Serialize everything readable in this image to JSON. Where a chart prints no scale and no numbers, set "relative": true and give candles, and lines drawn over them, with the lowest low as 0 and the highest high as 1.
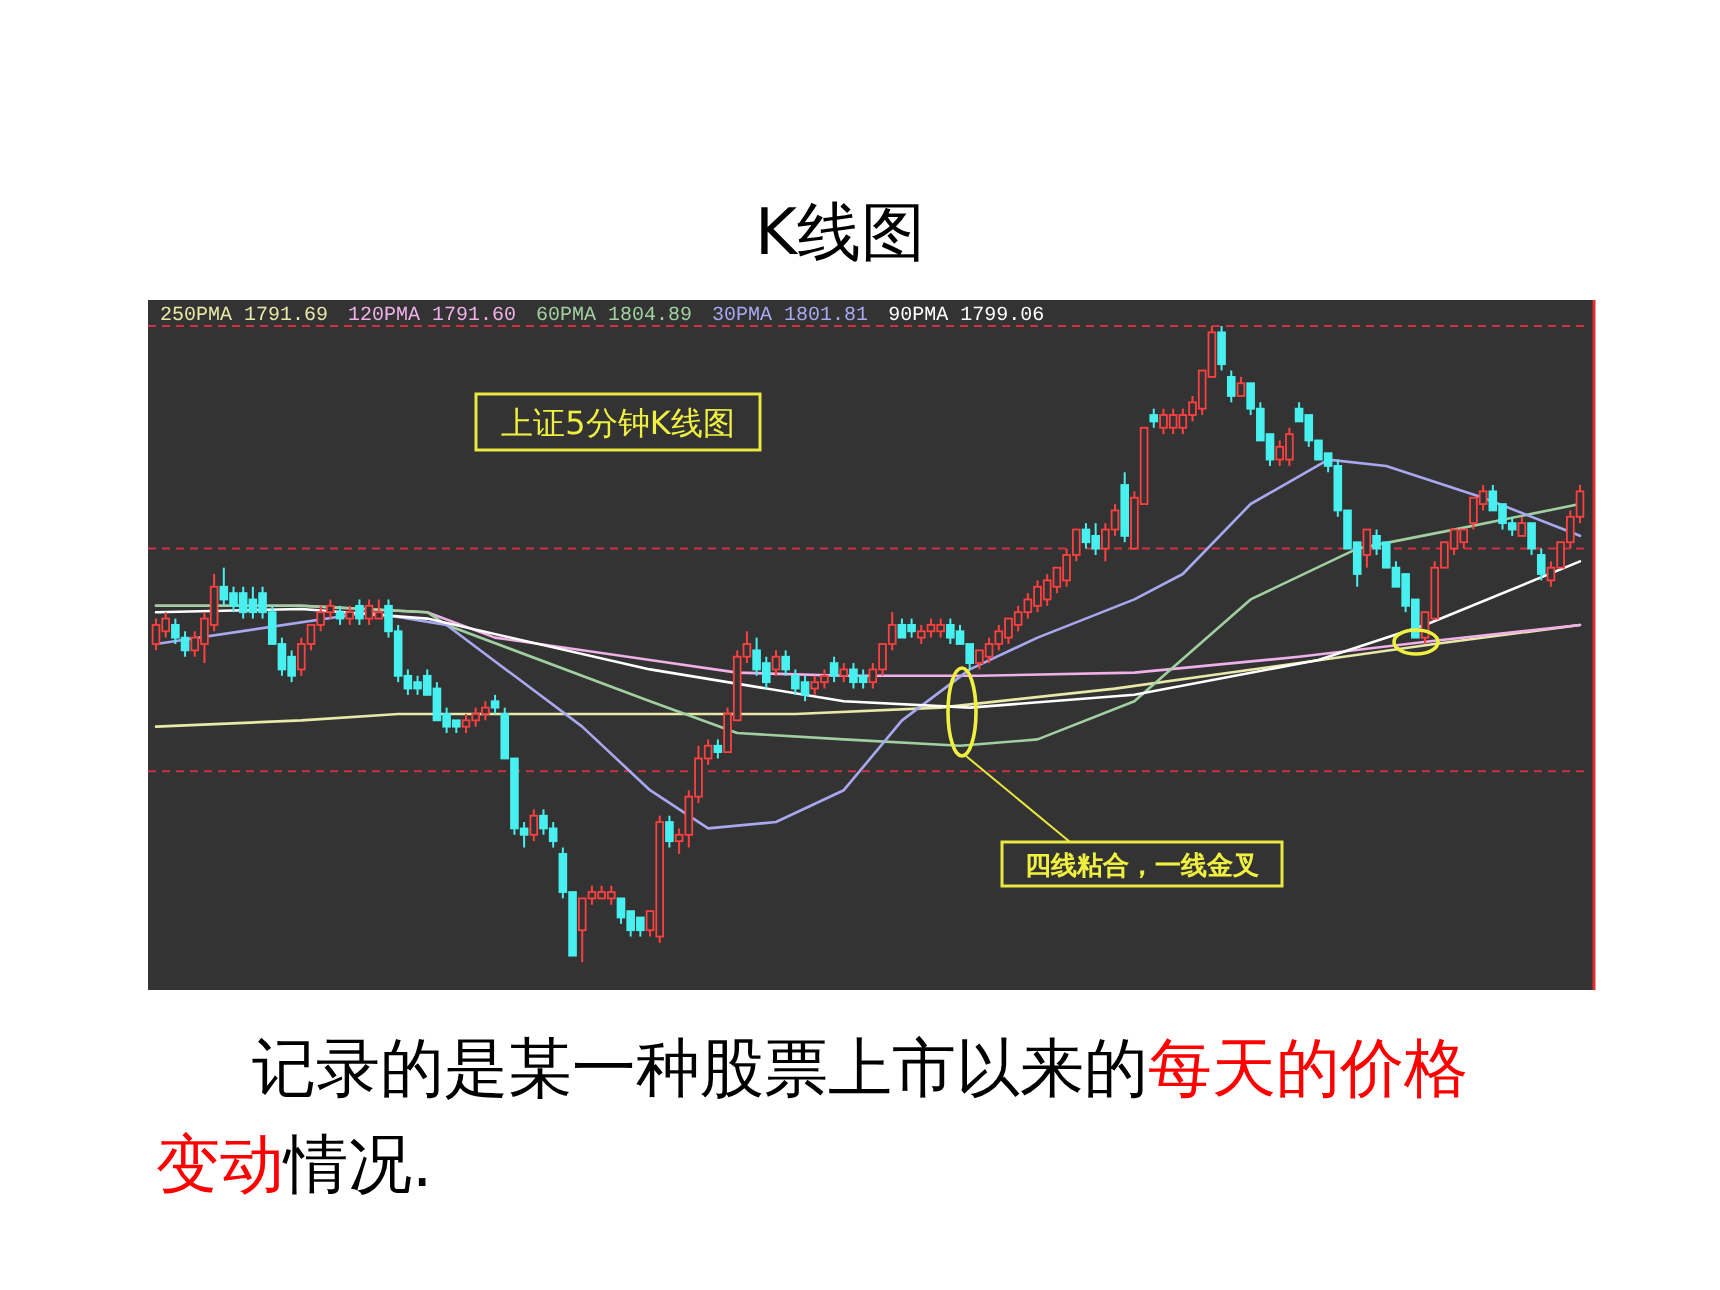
{
  "chart_data": {
    "type": "candlestick",
    "title": "K线图",
    "relative": true,
    "legend": "top left",
    "colors": [
      "#ff4040",
      "#ff4040",
      "#48f0f0",
      "#48f0f0",
      "#ff4040",
      "#ff4040",
      "#ff4040",
      "#48f0f0",
      "#48f0f0",
      "#48f0f0",
      "#48f0f0",
      "#48f0f0",
      "#48f0f0",
      "#48f0f0",
      "#48f0f0",
      "#ff4040",
      "#ff4040",
      "#ff4040",
      "#ff4040",
      "#48f0f0",
      "#ff4040",
      "#48f0f0",
      "#ff4040",
      "#ff4040",
      "#48f0f0",
      "#48f0f0",
      "#48f0f0",
      "#48f0f0",
      "#48f0f0",
      "#48f0f0",
      "#48f0f0",
      "#48f0f0",
      "#ff4040",
      "#ff4040",
      "#ff4040",
      "#48f0f0",
      "#48f0f0",
      "#48f0f0",
      "#48f0f0",
      "#ff4040",
      "#48f0f0",
      "#48f0f0",
      "#48f0f0",
      "#48f0f0",
      "#ff4040",
      "#ff4040",
      "#ff4040",
      "#ff4040",
      "#48f0f0",
      "#48f0f0",
      "#48f0f0",
      "#ff4040",
      "#ff4040",
      "#48f0f0",
      "#ff4040",
      "#ff4040",
      "#ff4040",
      "#ff4040",
      "#48f0f0",
      "#ff4040",
      "#ff4040",
      "#ff4040",
      "#48f0f0",
      "#48f0f0",
      "#ff4040",
      "#48f0f0",
      "#48f0f0",
      "#48f0f0",
      "#ff4040",
      "#ff4040",
      "#48f0f0",
      "#ff4040",
      "#48f0f0",
      "#48f0f0",
      "#ff4040",
      "#ff4040",
      "#ff4040",
      "#48f0f0",
      "#48f0f0",
      "#ff4040",
      "#ff4040",
      "#ff4040",
      "#48f0f0",
      "#48f0f0",
      "#48f0f0",
      "#ff4040",
      "#ff4040",
      "#ff4040",
      "#ff4040",
      "#ff4040",
      "#ff4040",
      "#ff4040",
      "#ff4040",
      "#ff4040",
      "#ff4040",
      "#ff4040",
      "#48f0f0",
      "#48f0f0",
      "#ff4040",
      "#ff4040",
      "#48f0f0",
      "#ff4040",
      "#ff4040",
      "#48f0f0",
      "#ff4040",
      "#ff4040",
      "#ff4040",
      "#ff4040",
      "#ff4040",
      "#ff4040",
      "#48f0f0",
      "#48f0f0",
      "#ff4040",
      "#48f0f0",
      "#48f0f0",
      "#48f0f0",
      "#ff4040",
      "#ff4040",
      "#48f0f0",
      "#48f0f0",
      "#48f0f0",
      "#48f0f0",
      "#48f0f0",
      "#48f0f0",
      "#48f0f0",
      "#ff4040",
      "#48f0f0",
      "#48f0f0",
      "#48f0f0",
      "#48f0f0",
      "#48f0f0",
      "#ff4040",
      "#ff4040",
      "#ff4040",
      "#ff4040",
      "#ff4040",
      "#ff4040",
      "#ff4040",
      "#48f0f0",
      "#48f0f0",
      "#48f0f0",
      "#ff4040",
      "#48f0f0",
      "#48f0f0",
      "#ff4040",
      "#ff4040",
      "#ff4040",
      "#ff4040"
    ],
    "categories": [
      null,
      null,
      null,
      null,
      null,
      null,
      null,
      null,
      null,
      null,
      null,
      null,
      null,
      null,
      null,
      null,
      null,
      null,
      null,
      null,
      null,
      null,
      null,
      null,
      null,
      null,
      null,
      null,
      null,
      null,
      null,
      null,
      null,
      null,
      null,
      null,
      null,
      null,
      null,
      null,
      null,
      null,
      null,
      null,
      null,
      null,
      null,
      null,
      null,
      null,
      null,
      null,
      null,
      null,
      null,
      null,
      null,
      null,
      null,
      null,
      null,
      null,
      null,
      null,
      null,
      null,
      null,
      null,
      null,
      null,
      null,
      null,
      null,
      null,
      null,
      null,
      null,
      null,
      null,
      null,
      null,
      null,
      null,
      null,
      null,
      null,
      null,
      null,
      null,
      null,
      null,
      null,
      null,
      null,
      null,
      null,
      null,
      null,
      null,
      null,
      null,
      null,
      null,
      null,
      null,
      null,
      null,
      null,
      null,
      null,
      null,
      null,
      null,
      null,
      null,
      null,
      null,
      null,
      null,
      null,
      null,
      null,
      null,
      null,
      null,
      null,
      null,
      null,
      null,
      null,
      null,
      null,
      null,
      null,
      null,
      null,
      null,
      null,
      null,
      null,
      null,
      null,
      null,
      null,
      null,
      null,
      null,
      null
    ],
    "ohlc": [
      [
        0.5,
        0.54,
        0.49,
        0.53
      ],
      [
        0.52,
        0.55,
        0.51,
        0.54
      ],
      [
        0.53,
        0.54,
        0.5,
        0.51
      ],
      [
        0.51,
        0.52,
        0.48,
        0.49
      ],
      [
        0.49,
        0.52,
        0.48,
        0.51
      ],
      [
        0.5,
        0.55,
        0.47,
        0.54
      ],
      [
        0.53,
        0.61,
        0.52,
        0.59
      ],
      [
        0.59,
        0.62,
        0.56,
        0.57
      ],
      [
        0.58,
        0.59,
        0.55,
        0.56
      ],
      [
        0.58,
        0.59,
        0.54,
        0.55
      ],
      [
        0.57,
        0.59,
        0.54,
        0.55
      ],
      [
        0.58,
        0.59,
        0.54,
        0.55
      ],
      [
        0.55,
        0.56,
        0.5,
        0.5
      ],
      [
        0.5,
        0.51,
        0.45,
        0.46
      ],
      [
        0.48,
        0.49,
        0.44,
        0.45
      ],
      [
        0.46,
        0.51,
        0.45,
        0.5
      ],
      [
        0.5,
        0.53,
        0.49,
        0.53
      ],
      [
        0.53,
        0.56,
        0.52,
        0.55
      ],
      [
        0.55,
        0.57,
        0.54,
        0.56
      ],
      [
        0.55,
        0.56,
        0.53,
        0.54
      ],
      [
        0.54,
        0.56,
        0.53,
        0.55
      ],
      [
        0.56,
        0.57,
        0.53,
        0.54
      ],
      [
        0.54,
        0.57,
        0.53,
        0.56
      ],
      [
        0.54,
        0.57,
        0.54,
        0.55
      ],
      [
        0.56,
        0.57,
        0.51,
        0.52
      ],
      [
        0.52,
        0.53,
        0.44,
        0.45
      ],
      [
        0.45,
        0.46,
        0.42,
        0.43
      ],
      [
        0.44,
        0.45,
        0.42,
        0.43
      ],
      [
        0.45,
        0.46,
        0.42,
        0.42
      ],
      [
        0.43,
        0.44,
        0.38,
        0.38
      ],
      [
        0.39,
        0.4,
        0.36,
        0.37
      ],
      [
        0.38,
        0.38,
        0.36,
        0.37
      ],
      [
        0.37,
        0.39,
        0.36,
        0.38
      ],
      [
        0.38,
        0.4,
        0.37,
        0.39
      ],
      [
        0.39,
        0.41,
        0.38,
        0.4
      ],
      [
        0.41,
        0.42,
        0.39,
        0.4
      ],
      [
        0.39,
        0.4,
        0.32,
        0.32
      ],
      [
        0.32,
        0.32,
        0.2,
        0.21
      ],
      [
        0.21,
        0.22,
        0.18,
        0.2
      ],
      [
        0.2,
        0.24,
        0.19,
        0.23
      ],
      [
        0.23,
        0.24,
        0.2,
        0.21
      ],
      [
        0.21,
        0.22,
        0.18,
        0.19
      ],
      [
        0.17,
        0.18,
        0.1,
        0.11
      ],
      [
        0.11,
        0.11,
        0.01,
        0.01
      ],
      [
        0.05,
        0.1,
        0.0,
        0.1
      ],
      [
        0.1,
        0.12,
        0.09,
        0.11
      ],
      [
        0.1,
        0.12,
        0.1,
        0.11
      ],
      [
        0.1,
        0.12,
        0.09,
        0.11
      ],
      [
        0.1,
        0.1,
        0.06,
        0.07
      ],
      [
        0.08,
        0.08,
        0.04,
        0.05
      ],
      [
        0.07,
        0.07,
        0.04,
        0.05
      ],
      [
        0.05,
        0.08,
        0.04,
        0.08
      ],
      [
        0.04,
        0.23,
        0.03,
        0.22
      ],
      [
        0.22,
        0.23,
        0.18,
        0.19
      ],
      [
        0.19,
        0.21,
        0.17,
        0.2
      ],
      [
        0.2,
        0.27,
        0.18,
        0.26
      ],
      [
        0.26,
        0.34,
        0.25,
        0.32
      ],
      [
        0.32,
        0.35,
        0.31,
        0.34
      ],
      [
        0.34,
        0.35,
        0.32,
        0.33
      ],
      [
        0.33,
        0.4,
        0.33,
        0.39
      ],
      [
        0.38,
        0.49,
        0.38,
        0.48
      ],
      [
        0.48,
        0.52,
        0.47,
        0.5
      ],
      [
        0.49,
        0.51,
        0.45,
        0.46
      ],
      [
        0.47,
        0.48,
        0.43,
        0.44
      ],
      [
        0.46,
        0.49,
        0.45,
        0.48
      ],
      [
        0.48,
        0.49,
        0.45,
        0.46
      ],
      [
        0.45,
        0.46,
        0.42,
        0.43
      ],
      [
        0.44,
        0.45,
        0.41,
        0.42
      ],
      [
        0.43,
        0.45,
        0.42,
        0.44
      ],
      [
        0.44,
        0.46,
        0.43,
        0.45
      ],
      [
        0.47,
        0.48,
        0.44,
        0.45
      ],
      [
        0.45,
        0.47,
        0.44,
        0.46
      ],
      [
        0.46,
        0.47,
        0.43,
        0.44
      ],
      [
        0.45,
        0.46,
        0.43,
        0.44
      ],
      [
        0.44,
        0.47,
        0.43,
        0.46
      ],
      [
        0.46,
        0.5,
        0.45,
        0.5
      ],
      [
        0.5,
        0.55,
        0.49,
        0.53
      ],
      [
        0.53,
        0.54,
        0.51,
        0.51
      ],
      [
        0.53,
        0.54,
        0.51,
        0.52
      ],
      [
        0.51,
        0.53,
        0.5,
        0.52
      ],
      [
        0.52,
        0.54,
        0.51,
        0.53
      ],
      [
        0.52,
        0.54,
        0.51,
        0.53
      ],
      [
        0.53,
        0.54,
        0.5,
        0.51
      ],
      [
        0.52,
        0.53,
        0.5,
        0.5
      ],
      [
        0.5,
        0.5,
        0.46,
        0.47
      ],
      [
        0.47,
        0.49,
        0.46,
        0.49
      ],
      [
        0.48,
        0.51,
        0.47,
        0.5
      ],
      [
        0.5,
        0.53,
        0.49,
        0.52
      ],
      [
        0.51,
        0.54,
        0.5,
        0.54
      ],
      [
        0.53,
        0.56,
        0.52,
        0.55
      ],
      [
        0.55,
        0.58,
        0.54,
        0.57
      ],
      [
        0.56,
        0.6,
        0.55,
        0.59
      ],
      [
        0.57,
        0.61,
        0.56,
        0.6
      ],
      [
        0.59,
        0.62,
        0.58,
        0.62
      ],
      [
        0.6,
        0.65,
        0.59,
        0.64
      ],
      [
        0.64,
        0.68,
        0.63,
        0.68
      ],
      [
        0.68,
        0.69,
        0.65,
        0.66
      ],
      [
        0.67,
        0.69,
        0.64,
        0.65
      ],
      [
        0.65,
        0.69,
        0.63,
        0.68
      ],
      [
        0.68,
        0.72,
        0.67,
        0.71
      ],
      [
        0.75,
        0.77,
        0.66,
        0.67
      ],
      [
        0.65,
        0.74,
        0.65,
        0.73
      ],
      [
        0.72,
        0.84,
        0.72,
        0.84
      ],
      [
        0.86,
        0.87,
        0.84,
        0.85
      ],
      [
        0.84,
        0.87,
        0.83,
        0.86
      ],
      [
        0.84,
        0.87,
        0.83,
        0.86
      ],
      [
        0.84,
        0.87,
        0.83,
        0.86
      ],
      [
        0.86,
        0.89,
        0.85,
        0.88
      ],
      [
        0.87,
        0.93,
        0.86,
        0.93
      ],
      [
        0.92,
        1.0,
        0.92,
        0.99
      ],
      [
        0.99,
        1.0,
        0.93,
        0.94
      ],
      [
        0.92,
        0.93,
        0.88,
        0.89
      ],
      [
        0.89,
        0.92,
        0.89,
        0.91
      ],
      [
        0.91,
        0.91,
        0.86,
        0.87
      ],
      [
        0.87,
        0.88,
        0.82,
        0.82
      ],
      [
        0.83,
        0.83,
        0.78,
        0.79
      ],
      [
        0.79,
        0.82,
        0.78,
        0.81
      ],
      [
        0.79,
        0.84,
        0.78,
        0.83
      ],
      [
        0.87,
        0.88,
        0.85,
        0.85
      ],
      [
        0.86,
        0.86,
        0.81,
        0.82
      ],
      [
        0.82,
        0.82,
        0.79,
        0.79
      ],
      [
        0.8,
        0.8,
        0.77,
        0.78
      ],
      [
        0.78,
        0.79,
        0.7,
        0.71
      ],
      [
        0.71,
        0.71,
        0.65,
        0.65
      ],
      [
        0.66,
        0.66,
        0.59,
        0.61
      ],
      [
        0.64,
        0.68,
        0.62,
        0.68
      ],
      [
        0.67,
        0.68,
        0.64,
        0.65
      ],
      [
        0.66,
        0.66,
        0.62,
        0.62
      ],
      [
        0.62,
        0.63,
        0.59,
        0.59
      ],
      [
        0.61,
        0.61,
        0.55,
        0.56
      ],
      [
        0.57,
        0.57,
        0.51,
        0.51
      ],
      [
        0.51,
        0.55,
        0.5,
        0.55
      ],
      [
        0.54,
        0.63,
        0.54,
        0.62
      ],
      [
        0.62,
        0.66,
        0.62,
        0.66
      ],
      [
        0.65,
        0.68,
        0.64,
        0.68
      ],
      [
        0.66,
        0.68,
        0.65,
        0.68
      ],
      [
        0.69,
        0.73,
        0.68,
        0.73
      ],
      [
        0.72,
        0.75,
        0.71,
        0.74
      ],
      [
        0.74,
        0.75,
        0.71,
        0.71
      ],
      [
        0.72,
        0.72,
        0.68,
        0.69
      ],
      [
        0.69,
        0.7,
        0.67,
        0.68
      ],
      [
        0.67,
        0.7,
        0.67,
        0.69
      ],
      [
        0.69,
        0.69,
        0.64,
        0.65
      ],
      [
        0.64,
        0.65,
        0.6,
        0.61
      ],
      [
        0.6,
        0.63,
        0.59,
        0.62
      ],
      [
        0.62,
        0.66,
        0.62,
        0.66
      ],
      [
        0.66,
        0.71,
        0.65,
        0.7
      ],
      [
        0.7,
        0.75,
        0.69,
        0.74
      ]
    ],
    "series": [
      {
        "type": "line",
        "name": "250PMA  1791.69",
        "color": "#e8e8a8",
        "values": [
          0.37,
          null,
          null,
          null,
          null,
          null,
          null,
          null,
          null,
          null,
          null,
          null,
          null,
          null,
          null,
          0.38,
          null,
          null,
          null,
          null,
          null,
          null,
          null,
          null,
          null,
          0.39,
          null,
          null,
          null,
          null,
          null,
          null,
          null,
          null,
          null,
          null,
          null,
          null,
          null,
          null,
          null,
          null,
          null,
          null,
          null,
          null,
          0.39,
          null,
          null,
          null,
          null,
          null,
          null,
          null,
          null,
          null,
          null,
          null,
          null,
          null,
          null,
          null,
          null,
          null,
          null,
          null,
          0.39,
          null,
          null,
          null,
          null,
          null,
          null,
          null,
          null,
          null,
          null,
          null,
          null,
          null,
          null,
          0.4,
          null,
          null,
          null,
          null,
          null,
          null,
          null,
          null,
          null,
          null,
          null,
          null,
          null,
          null,
          null,
          null,
          null,
          0.43,
          null,
          null,
          null,
          null,
          null,
          null,
          null,
          null,
          null,
          null,
          null,
          null,
          null,
          null,
          null,
          null,
          null,
          null,
          0.47,
          null,
          null,
          null,
          null,
          null,
          null,
          null,
          null,
          null,
          null,
          null,
          null,
          null,
          0.5,
          null,
          null,
          null,
          null,
          null,
          null,
          null,
          null,
          null,
          null,
          null,
          null,
          null,
          null,
          0.53
        ]
      },
      {
        "type": "line",
        "name": "120PMA  1791.60",
        "color": "#f0b0e8",
        "values": [
          0.56,
          null,
          null,
          null,
          null,
          null,
          null,
          null,
          null,
          null,
          null,
          null,
          null,
          null,
          null,
          0.56,
          null,
          null,
          null,
          null,
          null,
          null,
          null,
          null,
          null,
          null,
          null,
          null,
          0.55,
          null,
          null,
          null,
          null,
          null,
          null,
          0.51,
          null,
          null,
          null,
          null,
          null,
          null,
          null,
          null,
          null,
          null,
          null,
          null,
          null,
          null,
          null,
          0.475,
          null,
          null,
          null,
          null,
          null,
          null,
          null,
          null,
          0.455,
          null,
          null,
          null,
          null,
          null,
          null,
          null,
          null,
          null,
          null,
          0.45,
          null,
          null,
          null,
          null,
          null,
          null,
          null,
          null,
          null,
          null,
          null,
          null,
          null,
          0.45,
          null,
          null,
          null,
          null,
          null,
          null,
          null,
          null,
          null,
          null,
          null,
          null,
          null,
          null,
          null,
          0.455,
          null,
          null,
          null,
          null,
          null,
          null,
          null,
          null,
          null,
          null,
          null,
          null,
          null,
          null,
          null,
          null,
          0.48,
          null,
          null,
          null,
          null,
          null,
          null,
          null,
          null,
          null,
          null,
          null,
          null,
          null,
          0.505,
          null,
          null,
          null,
          null,
          null,
          null,
          null,
          null,
          null,
          null,
          null,
          null,
          null,
          null,
          0.53
        ]
      },
      {
        "type": "line",
        "name": "60PMA  1804.89",
        "color": "#a0d0a0",
        "values": [
          0.56,
          null,
          null,
          null,
          null,
          null,
          null,
          null,
          null,
          null,
          null,
          null,
          null,
          null,
          null,
          0.56,
          null,
          null,
          null,
          null,
          null,
          null,
          null,
          null,
          null,
          null,
          null,
          null,
          0.55,
          null,
          0.53,
          null,
          null,
          null,
          null,
          null,
          null,
          null,
          null,
          null,
          null,
          null,
          null,
          null,
          null,
          null,
          null,
          null,
          null,
          null,
          null,
          0.41,
          null,
          null,
          null,
          null,
          null,
          null,
          null,
          null,
          0.36,
          null,
          null,
          null,
          null,
          null,
          null,
          null,
          null,
          null,
          null,
          0.35,
          null,
          null,
          null,
          null,
          null,
          null,
          null,
          null,
          null,
          null,
          null,
          0.34,
          null,
          null,
          null,
          null,
          null,
          null,
          null,
          0.35,
          null,
          null,
          null,
          null,
          null,
          null,
          null,
          null,
          null,
          0.41,
          null,
          null,
          null,
          null,
          null,
          null,
          null,
          null,
          null,
          null,
          null,
          0.57,
          null,
          null,
          null,
          null,
          null,
          null,
          null,
          null,
          null,
          null,
          0.65,
          null,
          null,
          null,
          null,
          null,
          null,
          null,
          null,
          null,
          0.68,
          null,
          null,
          null,
          null,
          null,
          null,
          null,
          null,
          null,
          null,
          null,
          null,
          0.72
        ]
      },
      {
        "type": "line",
        "name": "30PMA  1801.81",
        "color": "#a8a8f0",
        "values": [
          0.5,
          null,
          null,
          null,
          null,
          null,
          null,
          null,
          null,
          null,
          null,
          null,
          null,
          null,
          null,
          null,
          null,
          null,
          null,
          null,
          null,
          null,
          0.55,
          null,
          null,
          null,
          null,
          null,
          null,
          null,
          0.53,
          null,
          null,
          null,
          null,
          null,
          null,
          0.45,
          null,
          null,
          null,
          null,
          null,
          null,
          0.37,
          null,
          null,
          null,
          null,
          null,
          null,
          0.27,
          null,
          null,
          null,
          null,
          null,
          0.21,
          null,
          null,
          null,
          null,
          null,
          null,
          0.22,
          null,
          null,
          null,
          null,
          null,
          null,
          0.27,
          null,
          null,
          null,
          null,
          null,
          0.38,
          null,
          null,
          null,
          null,
          null,
          null,
          0.46,
          null,
          null,
          null,
          null,
          null,
          null,
          0.51,
          null,
          null,
          null,
          null,
          null,
          null,
          null,
          null,
          null,
          0.57,
          null,
          null,
          null,
          null,
          0.61,
          null,
          null,
          null,
          null,
          null,
          null,
          0.72,
          null,
          null,
          null,
          null,
          null,
          null,
          null,
          0.79,
          null,
          null,
          null,
          null,
          null,
          0.78,
          null,
          null,
          null,
          null,
          null,
          null,
          null,
          null,
          null,
          0.73,
          null,
          null,
          null,
          null,
          null,
          null,
          null,
          null,
          null,
          0.67
        ]
      },
      {
        "type": "line",
        "name": "90PMA  1799.06",
        "color": "#ffffff",
        "values": [
          0.55,
          null,
          null,
          null,
          null,
          null,
          null,
          null,
          null,
          null,
          null,
          null,
          null,
          null,
          null,
          0.555,
          null,
          null,
          null,
          null,
          null,
          null,
          null,
          null,
          null,
          null,
          null,
          null,
          0.54,
          null,
          null,
          null,
          null,
          null,
          null,
          null,
          null,
          null,
          null,
          null,
          null,
          null,
          null,
          null,
          null,
          null,
          null,
          null,
          null,
          null,
          null,
          0.46,
          null,
          null,
          null,
          null,
          null,
          null,
          null,
          null,
          null,
          null,
          null,
          null,
          null,
          null,
          null,
          null,
          null,
          null,
          null,
          0.41,
          null,
          null,
          null,
          null,
          null,
          null,
          null,
          null,
          null,
          null,
          null,
          null,
          0.4,
          null,
          null,
          null,
          null,
          null,
          null,
          null,
          null,
          null,
          null,
          null,
          null,
          null,
          null,
          null,
          null,
          0.42,
          null,
          null,
          null,
          null,
          null,
          null,
          null,
          null,
          null,
          null,
          null,
          null,
          null,
          null,
          null,
          null,
          null,
          null,
          0.475,
          null,
          null,
          null,
          null,
          null,
          null,
          null,
          null,
          null,
          null,
          0.53,
          null,
          null,
          null,
          null,
          null,
          null,
          null,
          null,
          null,
          null,
          null,
          null,
          null,
          null,
          null,
          0.63
        ]
      }
    ],
    "ref_lines": [
      {
        "axis": "y",
        "value": 1.0,
        "color": "#d03040",
        "line_style": "dashed"
      },
      {
        "axis": "y",
        "value": 0.65,
        "color": "#d03040",
        "line_style": "dashed"
      },
      {
        "axis": "y",
        "value": 0.3,
        "color": "#d03040",
        "line_style": "dashed"
      }
    ],
    "annotations": [
      "上证5分钟K线图",
      "四线粘合，一线金叉",
      "记录的是某一种股票上市以来的",
      "每天的价格变动",
      "情况."
    ]
  }
}
